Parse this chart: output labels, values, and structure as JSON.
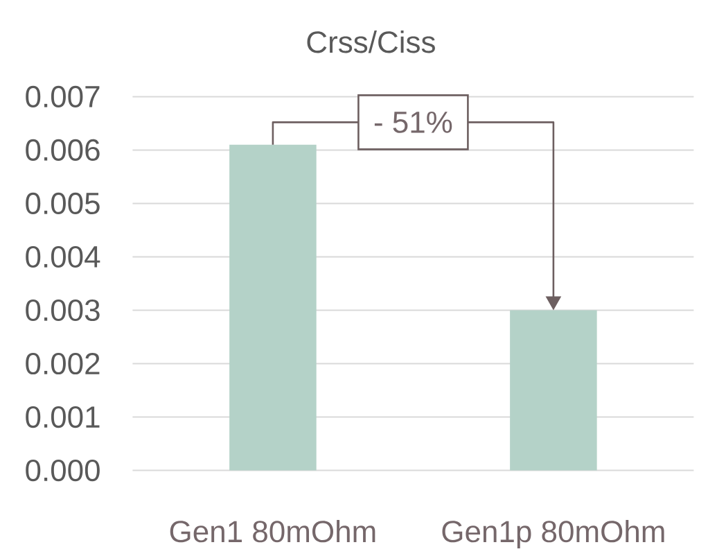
{
  "chart_data": {
    "type": "bar",
    "title": "Crss/Ciss",
    "categories": [
      "Gen1 80mOhm",
      "Gen1p 80mOhm"
    ],
    "values": [
      0.0061,
      0.003
    ],
    "color": "#b4d2c8",
    "ylim": [
      0,
      0.007
    ],
    "yticks": [
      {
        "value": 0,
        "label": "0.000"
      },
      0.001,
      0.002,
      0.003,
      0.004,
      0.005,
      0.006,
      0.007
    ],
    "grid": "y",
    "annotations": [
      "- 51%"
    ]
  }
}
